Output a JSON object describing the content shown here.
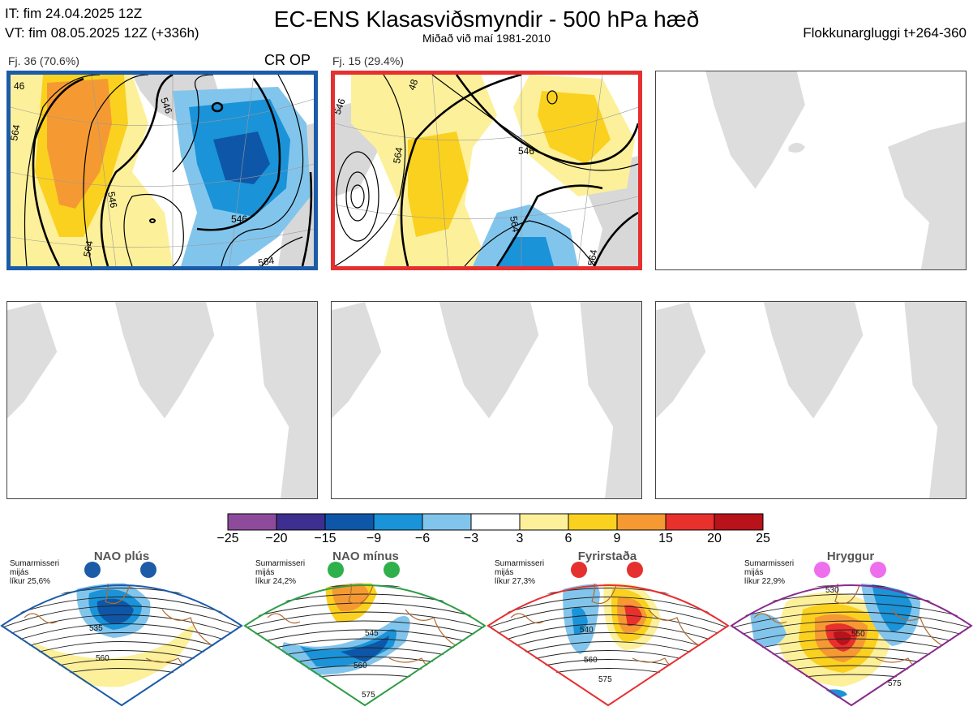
{
  "header": {
    "it_line": "IT: fim 24.04.2025 12Z",
    "vt_line": "VT: fim 08.05.2025 12Z  (+336h)",
    "title": "EC-ENS Klasasviðsmyndir - 500 hPa hæð",
    "subtitle": "Miðað við maí 1981-2010",
    "window": "Flokkunargluggi t+264-360"
  },
  "panels": [
    {
      "label": "Fj. 36 (70.6%)",
      "tag": "CR OP",
      "border": "#1c5ba8",
      "contours": [
        "546",
        "564",
        "564",
        "546",
        "546",
        "564",
        "46"
      ]
    },
    {
      "label": "Fj. 15 (29.4%)",
      "tag": "",
      "border": "#e63030",
      "contours": [
        "546",
        "564",
        "564",
        "546",
        "564",
        "48"
      ]
    }
  ],
  "colorbar": {
    "ticks": [
      "−25",
      "−20",
      "−15",
      "−9",
      "−6",
      "−3",
      "3",
      "6",
      "9",
      "15",
      "20",
      "25"
    ],
    "colors": [
      "#8e4b9c",
      "#3d2f8f",
      "#0e57a8",
      "#1a93d8",
      "#82c5ec",
      "#ffffff",
      "#fdf09a",
      "#fbd11f",
      "#f59a33",
      "#e8302c",
      "#b8121b"
    ]
  },
  "regimes": [
    {
      "name": "NAO plús",
      "season": "Sumarmisseri",
      "avg": "mijás",
      "prob": "líkur 25,6%",
      "color": "#1c5ba8",
      "dot_color": "#1c5ba8",
      "contours": [
        "535",
        "560"
      ]
    },
    {
      "name": "NAO mínus",
      "season": "Sumarmisseri",
      "avg": "mijás",
      "prob": "líkur 24,2%",
      "color": "#2e9e48",
      "dot_color": "#2eb04a",
      "contours": [
        "545",
        "560",
        "575"
      ]
    },
    {
      "name": "Fyrirstaða",
      "season": "Sumarmisseri",
      "avg": "mijás",
      "prob": "líkur 27,3%",
      "color": "#e63030",
      "dot_color": "#e63030",
      "contours": [
        "540",
        "560",
        "575"
      ]
    },
    {
      "name": "Hryggur",
      "season": "Sumarmisseri",
      "avg": "mijás",
      "prob": "líkur 22,9%",
      "color": "#8a2a8e",
      "dot_color": "#ee6fee",
      "contours": [
        "530",
        "550",
        "575"
      ]
    }
  ]
}
